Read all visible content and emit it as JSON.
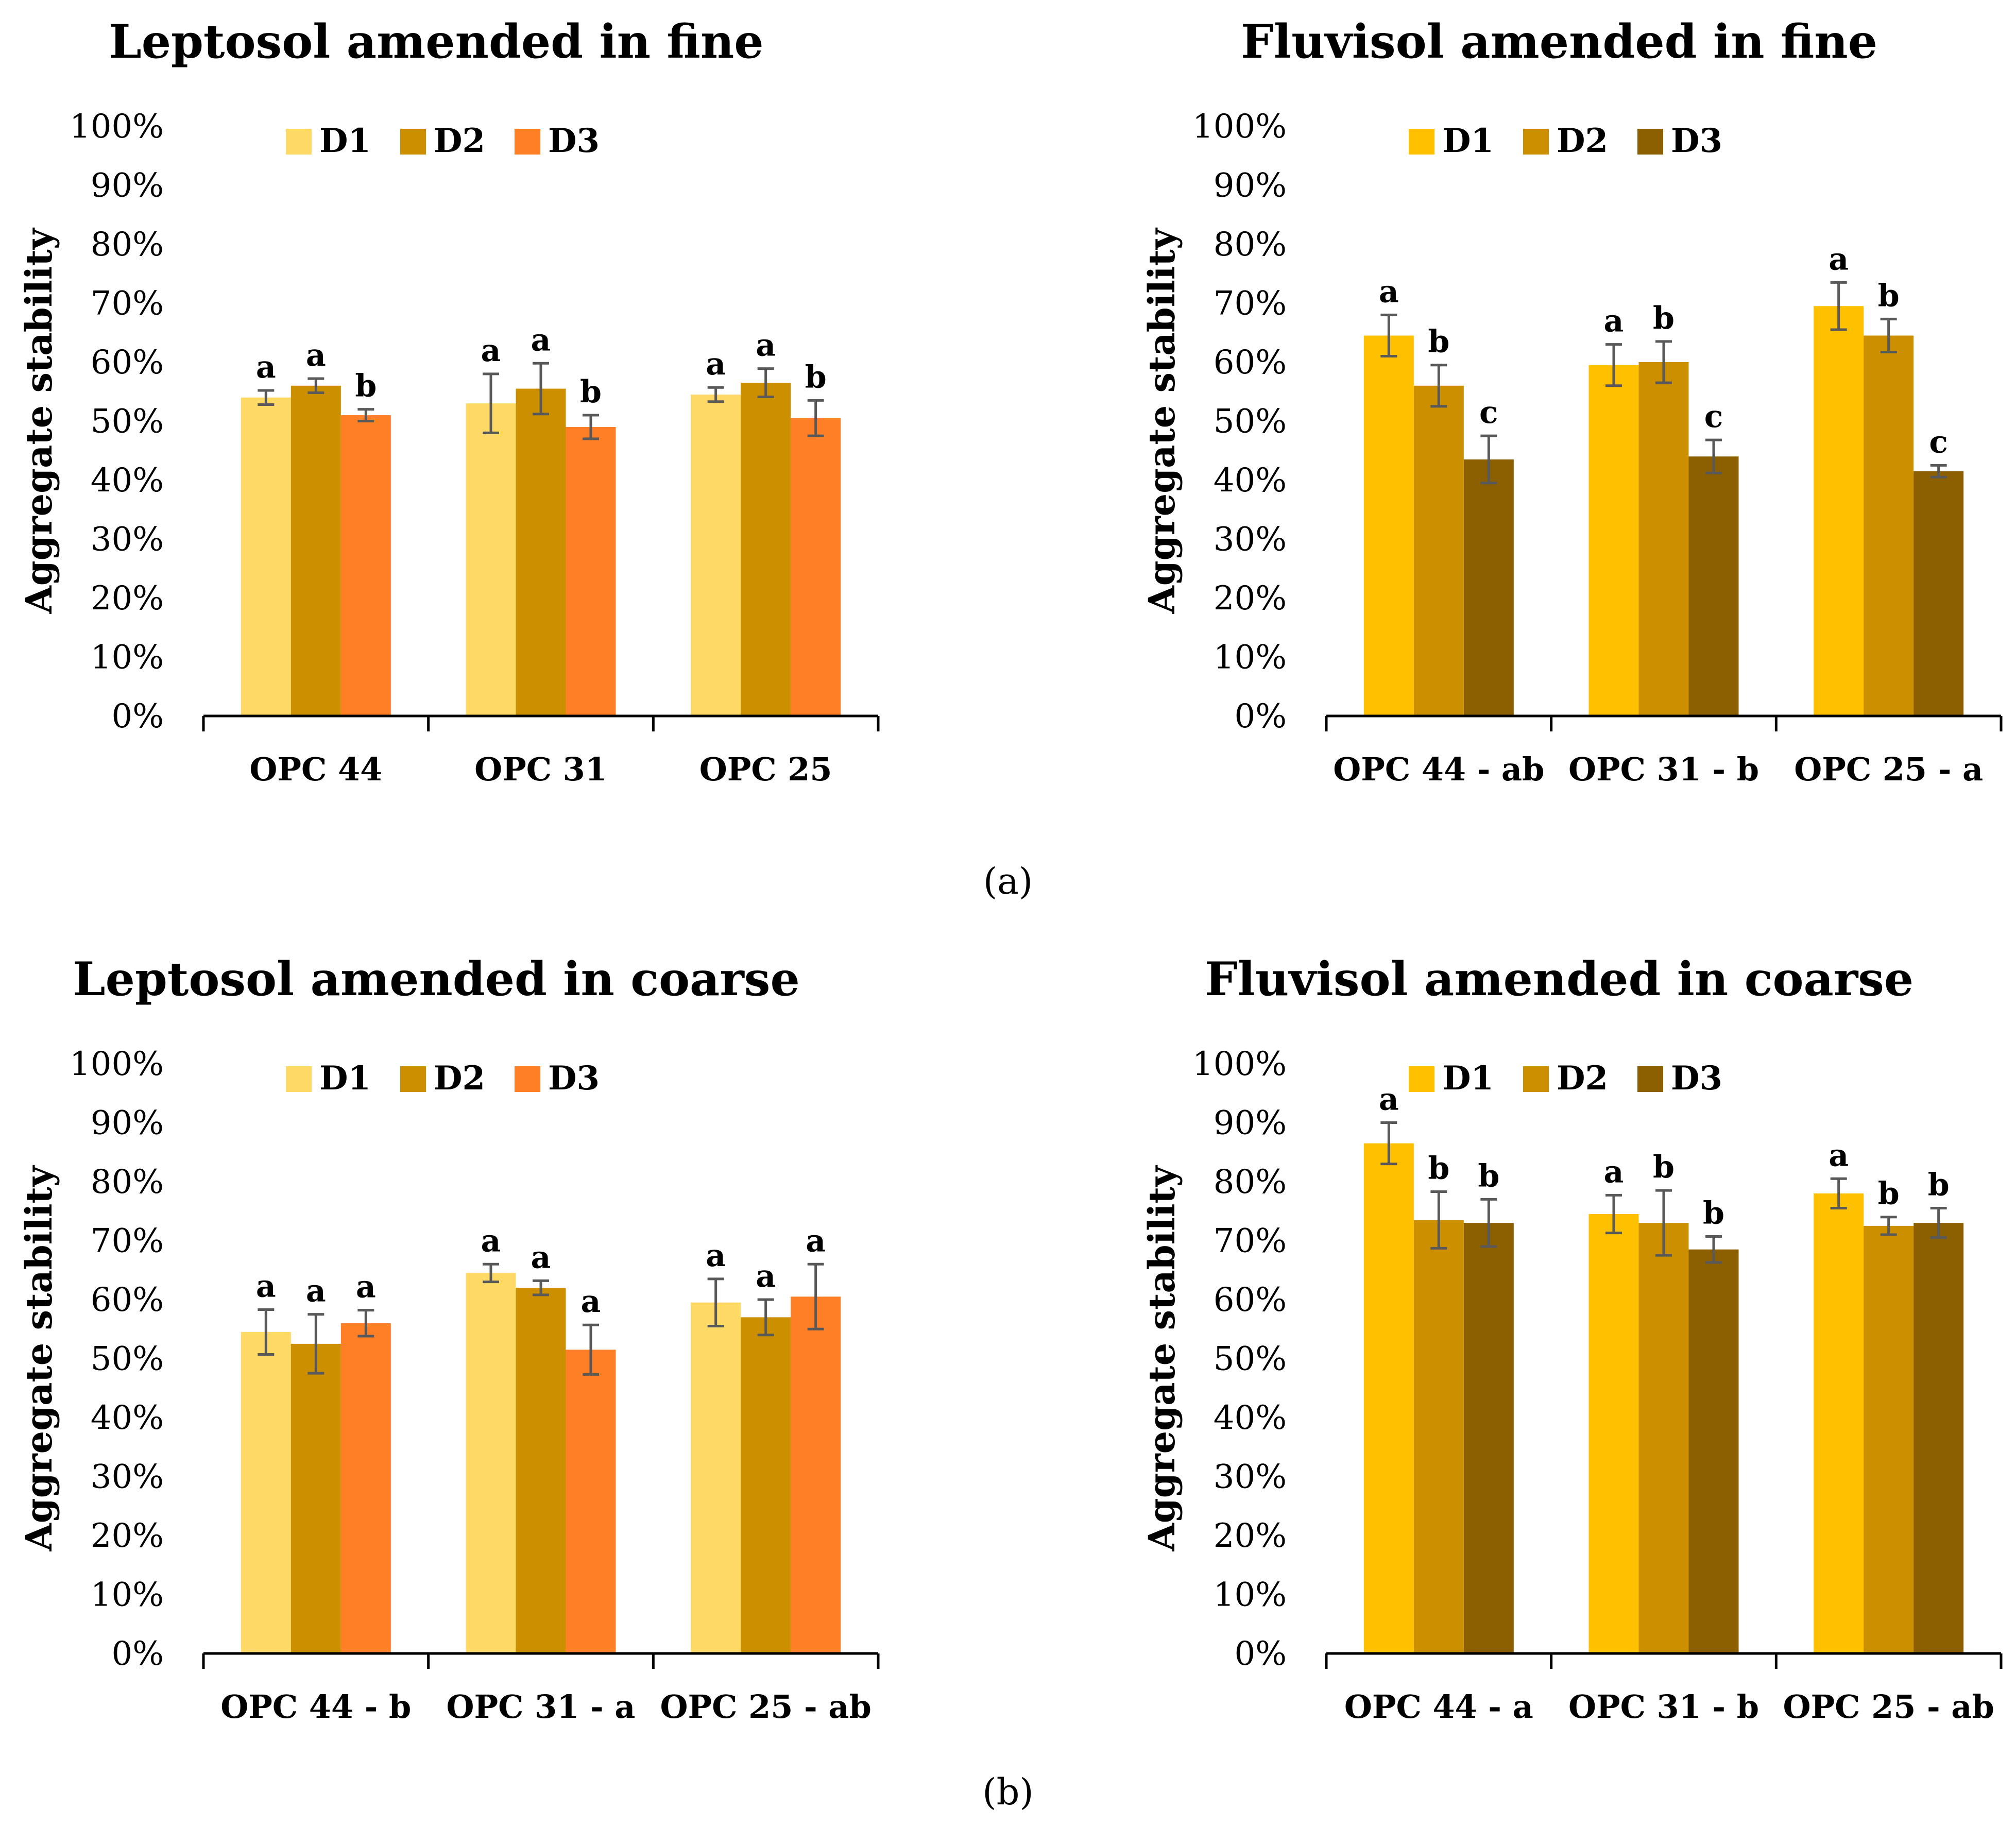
{
  "panel_labels": {
    "a": "(a)",
    "b": "(b)"
  },
  "chart_data": [
    {
      "type": "bar",
      "title": "Leptosol amended in fine",
      "ylabel": "Aggregate stability",
      "xlabel": "",
      "ylim": [
        0,
        100
      ],
      "yticks": [
        "0%",
        "10%",
        "20%",
        "30%",
        "40%",
        "50%",
        "60%",
        "70%",
        "80%",
        "90%",
        "100%"
      ],
      "legend_position": "top",
      "categories": [
        "OPC 44",
        "OPC 31",
        "OPC 25"
      ],
      "series": [
        {
          "name": "D1",
          "color": "#FFD966",
          "values": [
            54,
            53,
            54.5
          ],
          "errors": [
            1.2,
            5,
            1.2
          ],
          "letters": [
            "a",
            "a",
            "a"
          ]
        },
        {
          "name": "D2",
          "color": "#CC8F00",
          "values": [
            56,
            55.5,
            56.5
          ],
          "errors": [
            1.2,
            4.3,
            2.4
          ],
          "letters": [
            "a",
            "a",
            "a"
          ]
        },
        {
          "name": "D3",
          "color": "#FF7F27",
          "values": [
            51,
            49,
            50.5
          ],
          "errors": [
            1,
            2,
            3
          ],
          "letters": [
            "b",
            "b",
            "b"
          ]
        }
      ]
    },
    {
      "type": "bar",
      "title": "Fluvisol amended in fine",
      "ylabel": "Aggregate stability",
      "xlabel": "",
      "ylim": [
        0,
        100
      ],
      "yticks": [
        "0%",
        "10%",
        "20%",
        "30%",
        "40%",
        "50%",
        "60%",
        "70%",
        "80%",
        "90%",
        "100%"
      ],
      "legend_position": "top",
      "categories": [
        "OPC 44 - ab",
        "OPC 31 - b",
        "OPC 25 - a"
      ],
      "series": [
        {
          "name": "D1",
          "color": "#FFC000",
          "values": [
            64.5,
            59.5,
            69.5
          ],
          "errors": [
            3.5,
            3.5,
            4
          ],
          "letters": [
            "a",
            "a",
            "a"
          ]
        },
        {
          "name": "D2",
          "color": "#CC8F00",
          "values": [
            56,
            60,
            64.5
          ],
          "errors": [
            3.5,
            3.5,
            2.8
          ],
          "letters": [
            "b",
            "b",
            "b"
          ]
        },
        {
          "name": "D3",
          "color": "#8C6000",
          "values": [
            43.5,
            44,
            41.5
          ],
          "errors": [
            4,
            2.8,
            1
          ],
          "letters": [
            "c",
            "c",
            "c"
          ]
        }
      ]
    },
    {
      "type": "bar",
      "title": "Leptosol amended in coarse",
      "ylabel": "Aggregate stability",
      "xlabel": "",
      "ylim": [
        0,
        100
      ],
      "yticks": [
        "0%",
        "10%",
        "20%",
        "30%",
        "40%",
        "50%",
        "60%",
        "70%",
        "80%",
        "90%",
        "100%"
      ],
      "legend_position": "top",
      "categories": [
        "OPC 44 - b",
        "OPC 31 - a",
        "OPC 25 - ab"
      ],
      "series": [
        {
          "name": "D1",
          "color": "#FFD966",
          "values": [
            54.5,
            64.5,
            59.5
          ],
          "errors": [
            3.8,
            1.5,
            4
          ],
          "letters": [
            "a",
            "a",
            "a"
          ]
        },
        {
          "name": "D2",
          "color": "#CC8F00",
          "values": [
            52.5,
            62,
            57
          ],
          "errors": [
            5,
            1.2,
            3
          ],
          "letters": [
            "a",
            "a",
            "a"
          ]
        },
        {
          "name": "D3",
          "color": "#FF7F27",
          "values": [
            56,
            51.5,
            60.5
          ],
          "errors": [
            2.2,
            4.2,
            5.5
          ],
          "letters": [
            "a",
            "a",
            "a"
          ]
        }
      ]
    },
    {
      "type": "bar",
      "title": "Fluvisol amended in coarse",
      "ylabel": "Aggregate stability",
      "xlabel": "",
      "ylim": [
        0,
        100
      ],
      "yticks": [
        "0%",
        "10%",
        "20%",
        "30%",
        "40%",
        "50%",
        "60%",
        "70%",
        "80%",
        "90%",
        "100%"
      ],
      "legend_position": "top",
      "categories": [
        "OPC 44 - a",
        "OPC 31 - b",
        "OPC 25 - ab"
      ],
      "series": [
        {
          "name": "D1",
          "color": "#FFC000",
          "values": [
            86.5,
            74.5,
            78
          ],
          "errors": [
            3.5,
            3.2,
            2.5
          ],
          "letters": [
            "a",
            "a",
            "a"
          ]
        },
        {
          "name": "D2",
          "color": "#CC8F00",
          "values": [
            73.5,
            73,
            72.5
          ],
          "errors": [
            4.8,
            5.5,
            1.5
          ],
          "letters": [
            "b",
            "b",
            "b"
          ]
        },
        {
          "name": "D3",
          "color": "#8C6000",
          "values": [
            73,
            68.5,
            73
          ],
          "errors": [
            4,
            2.2,
            2.5
          ],
          "letters": [
            "b",
            "b",
            "b"
          ]
        }
      ]
    }
  ]
}
